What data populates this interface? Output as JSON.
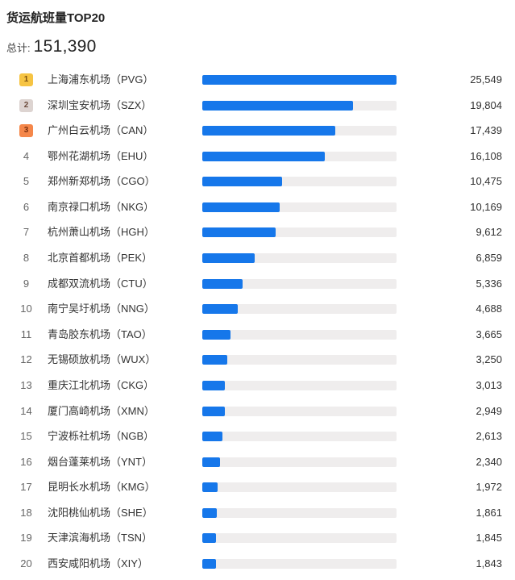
{
  "header": {
    "title": "货运航班量TOP20",
    "total_label": "总计:",
    "total_value": "151,390"
  },
  "colors": {
    "bar_fill": "#1677ea",
    "bar_track": "#efeded",
    "rank1": "#f6c443",
    "rank2": "#ddd4d1",
    "rank3": "#f5874a"
  },
  "chart_data": {
    "type": "bar",
    "orientation": "horizontal",
    "title": "货运航班量TOP20",
    "subtitle": "总计: 151,390",
    "xlabel": "",
    "ylabel": "",
    "xlim": [
      0,
      25549
    ],
    "categories": [
      "上海浦东机场（PVG）",
      "深圳宝安机场（SZX）",
      "广州白云机场（CAN）",
      "鄂州花湖机场（EHU）",
      "郑州新郑机场（CGO）",
      "南京禄口机场（NKG）",
      "杭州萧山机场（HGH）",
      "北京首都机场（PEK）",
      "成都双流机场（CTU）",
      "南宁吴圩机场（NNG）",
      "青岛胶东机场（TAO）",
      "无锡硕放机场（WUX）",
      "重庆江北机场（CKG）",
      "厦门高崎机场（XMN）",
      "宁波栎社机场（NGB）",
      "烟台蓬莱机场（YNT）",
      "昆明长水机场（KMG）",
      "沈阳桃仙机场（SHE）",
      "天津滨海机场（TSN）",
      "西安咸阳机场（XIY）"
    ],
    "values": [
      25549,
      19804,
      17439,
      16108,
      10475,
      10169,
      9612,
      6859,
      5336,
      4688,
      3665,
      3250,
      3013,
      2949,
      2613,
      2340,
      1972,
      1861,
      1845,
      1843
    ],
    "grid": false,
    "legend": null
  },
  "rows": [
    {
      "rank": "1",
      "name": "上海浦东机场（PVG）",
      "value": 25549,
      "display": "25,549"
    },
    {
      "rank": "2",
      "name": "深圳宝安机场（SZX）",
      "value": 19804,
      "display": "19,804"
    },
    {
      "rank": "3",
      "name": "广州白云机场（CAN）",
      "value": 17439,
      "display": "17,439"
    },
    {
      "rank": "4",
      "name": "鄂州花湖机场（EHU）",
      "value": 16108,
      "display": "16,108"
    },
    {
      "rank": "5",
      "name": "郑州新郑机场（CGO）",
      "value": 10475,
      "display": "10,475"
    },
    {
      "rank": "6",
      "name": "南京禄口机场（NKG）",
      "value": 10169,
      "display": "10,169"
    },
    {
      "rank": "7",
      "name": "杭州萧山机场（HGH）",
      "value": 9612,
      "display": "9,612"
    },
    {
      "rank": "8",
      "name": "北京首都机场（PEK）",
      "value": 6859,
      "display": "6,859"
    },
    {
      "rank": "9",
      "name": "成都双流机场（CTU）",
      "value": 5336,
      "display": "5,336"
    },
    {
      "rank": "10",
      "name": "南宁吴圩机场（NNG）",
      "value": 4688,
      "display": "4,688"
    },
    {
      "rank": "11",
      "name": "青岛胶东机场（TAO）",
      "value": 3665,
      "display": "3,665"
    },
    {
      "rank": "12",
      "name": "无锡硕放机场（WUX）",
      "value": 3250,
      "display": "3,250"
    },
    {
      "rank": "13",
      "name": "重庆江北机场（CKG）",
      "value": 3013,
      "display": "3,013"
    },
    {
      "rank": "14",
      "name": "厦门高崎机场（XMN）",
      "value": 2949,
      "display": "2,949"
    },
    {
      "rank": "15",
      "name": "宁波栎社机场（NGB）",
      "value": 2613,
      "display": "2,613"
    },
    {
      "rank": "16",
      "name": "烟台蓬莱机场（YNT）",
      "value": 2340,
      "display": "2,340"
    },
    {
      "rank": "17",
      "name": "昆明长水机场（KMG）",
      "value": 1972,
      "display": "1,972"
    },
    {
      "rank": "18",
      "name": "沈阳桃仙机场（SHE）",
      "value": 1861,
      "display": "1,861"
    },
    {
      "rank": "19",
      "name": "天津滨海机场（TSN）",
      "value": 1845,
      "display": "1,845"
    },
    {
      "rank": "20",
      "name": "西安咸阳机场（XIY）",
      "value": 1843,
      "display": "1,843"
    }
  ]
}
